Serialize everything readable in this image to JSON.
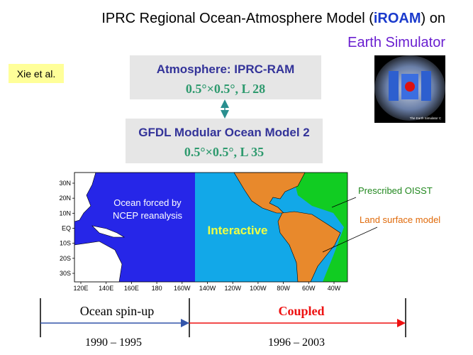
{
  "title": {
    "before": "IPRC Regional Ocean-Atmosphere Model (",
    "highlight": "iROAM",
    "after": ") on",
    "line2": "Earth Simulator"
  },
  "author": "Xie et al.",
  "atmosphere_box": {
    "name": "Atmosphere: IPRC-RAM",
    "resolution": "0.5°×0.5°, L 28"
  },
  "ocean_box": {
    "name": "GFDL Modular Ocean Model 2",
    "resolution": "0.5°×0.5°, L 35"
  },
  "image_caption": "The Earth Simulator C",
  "map": {
    "lat_labels": [
      "30N",
      "20N",
      "10N",
      "EQ",
      "10S",
      "20S",
      "30S"
    ],
    "lon_labels": [
      "120E",
      "140E",
      "160E",
      "180",
      "160W",
      "140W",
      "120W",
      "100W",
      "80W",
      "60W",
      "40W"
    ],
    "forced_text": [
      "Ocean forced by",
      "NCEP reanalysis"
    ],
    "interactive_text": "Interactive",
    "oisst_label": "Prescribed OISST",
    "land_label": "Land surface model"
  },
  "timeline": {
    "phase1": "Ocean spin-up",
    "phase2": "Coupled",
    "years1": "1990 – 1995",
    "years2": "1996 – 2003"
  }
}
